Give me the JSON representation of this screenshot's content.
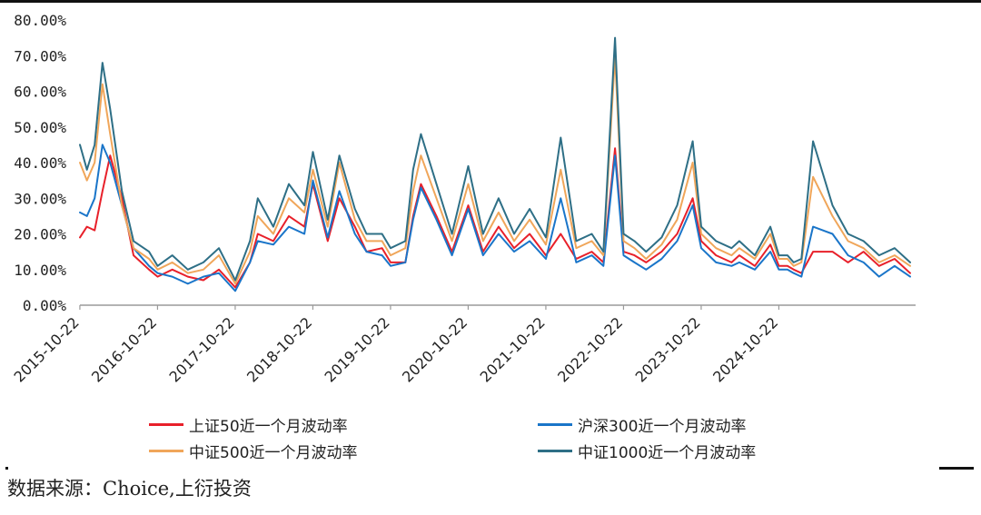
{
  "chart_data": {
    "type": "line",
    "title": "",
    "xlabel": "",
    "ylabel": "",
    "ylim": [
      0,
      80
    ],
    "y_ticks": [
      "0.00%",
      "10.00%",
      "20.00%",
      "30.00%",
      "40.00%",
      "50.00%",
      "60.00%",
      "70.00%",
      "80.00%"
    ],
    "x_ticks": [
      "2015-10-22",
      "2016-10-22",
      "2017-10-22",
      "2018-10-22",
      "2019-10-22",
      "2020-10-22",
      "2021-10-22",
      "2022-10-22",
      "2023-10-22",
      "2024-10-22"
    ],
    "xlim": [
      2015.81,
      2026.57
    ],
    "grid": false,
    "legend_position": "bottom",
    "series": [
      {
        "name": "上证50近一个月波动率",
        "color": "#e8202a",
        "x": [
          2015.81,
          2015.9,
          2016.0,
          2016.1,
          2016.2,
          2016.35,
          2016.5,
          2016.7,
          2016.81,
          2017.0,
          2017.2,
          2017.4,
          2017.6,
          2017.81,
          2018.0,
          2018.1,
          2018.3,
          2018.5,
          2018.7,
          2018.81,
          2019.0,
          2019.15,
          2019.35,
          2019.5,
          2019.7,
          2019.81,
          2020.0,
          2020.1,
          2020.2,
          2020.4,
          2020.6,
          2020.81,
          2021.0,
          2021.2,
          2021.4,
          2021.6,
          2021.81,
          2022.0,
          2022.2,
          2022.4,
          2022.55,
          2022.7,
          2022.81,
          2022.95,
          2023.1,
          2023.3,
          2023.5,
          2023.7,
          2023.81,
          2024.0,
          2024.2,
          2024.3,
          2024.5,
          2024.7,
          2024.81,
          2024.92,
          2025.0,
          2025.1,
          2025.25,
          2025.5,
          2025.7,
          2025.9,
          2026.1,
          2026.3,
          2026.5
        ],
        "values": [
          19,
          22,
          21,
          32,
          42,
          30,
          14,
          10,
          8,
          10,
          8,
          7,
          10,
          5,
          12,
          20,
          18,
          25,
          22,
          34,
          18,
          30,
          22,
          15,
          16,
          12,
          12,
          25,
          34,
          25,
          15,
          28,
          15,
          22,
          16,
          20,
          14,
          20,
          13,
          15,
          12,
          44,
          15,
          14,
          12,
          15,
          20,
          30,
          18,
          14,
          12,
          14,
          11,
          17,
          11,
          11,
          10,
          9,
          15,
          15,
          12,
          15,
          11,
          13,
          9
        ],
        "values_note_ignore": ""
      },
      {
        "name": "沪深300近一个月波动率",
        "color": "#1a75c9",
        "x": [
          2015.81,
          2015.9,
          2016.0,
          2016.1,
          2016.2,
          2016.35,
          2016.5,
          2016.7,
          2016.81,
          2017.0,
          2017.2,
          2017.4,
          2017.6,
          2017.81,
          2018.0,
          2018.1,
          2018.3,
          2018.5,
          2018.7,
          2018.81,
          2019.0,
          2019.15,
          2019.35,
          2019.5,
          2019.7,
          2019.81,
          2020.0,
          2020.1,
          2020.2,
          2020.4,
          2020.6,
          2020.81,
          2021.0,
          2021.2,
          2021.4,
          2021.6,
          2021.81,
          2022.0,
          2022.2,
          2022.4,
          2022.55,
          2022.7,
          2022.81,
          2022.95,
          2023.1,
          2023.3,
          2023.5,
          2023.7,
          2023.81,
          2024.0,
          2024.2,
          2024.3,
          2024.5,
          2024.7,
          2024.81,
          2024.92,
          2025.0,
          2025.1,
          2025.25,
          2025.5,
          2025.7,
          2025.9,
          2026.1,
          2026.3,
          2026.5
        ],
        "values": [
          26,
          25,
          30,
          45,
          40,
          28,
          16,
          11,
          9,
          8,
          6,
          8,
          9,
          4,
          12,
          18,
          17,
          22,
          20,
          35,
          19,
          32,
          20,
          15,
          14,
          11,
          12,
          24,
          33,
          24,
          14,
          27,
          14,
          20,
          15,
          18,
          13,
          30,
          12,
          14,
          11,
          42,
          14,
          12,
          10,
          13,
          18,
          28,
          16,
          12,
          11,
          12,
          10,
          15,
          10,
          10,
          9,
          8,
          22,
          20,
          14,
          12,
          8,
          11,
          8
        ]
      },
      {
        "name": "中证500近一个月波动率",
        "color": "#f0a65a",
        "x": [
          2015.81,
          2015.9,
          2016.0,
          2016.1,
          2016.2,
          2016.35,
          2016.5,
          2016.7,
          2016.81,
          2017.0,
          2017.2,
          2017.4,
          2017.6,
          2017.81,
          2018.0,
          2018.1,
          2018.3,
          2018.5,
          2018.7,
          2018.81,
          2019.0,
          2019.15,
          2019.35,
          2019.5,
          2019.7,
          2019.81,
          2020.0,
          2020.1,
          2020.2,
          2020.4,
          2020.6,
          2020.81,
          2021.0,
          2021.2,
          2021.4,
          2021.6,
          2021.81,
          2022.0,
          2022.2,
          2022.4,
          2022.55,
          2022.7,
          2022.81,
          2022.95,
          2023.1,
          2023.3,
          2023.5,
          2023.7,
          2023.81,
          2024.0,
          2024.2,
          2024.3,
          2024.5,
          2024.7,
          2024.81,
          2024.92,
          2025.0,
          2025.1,
          2025.25,
          2025.5,
          2025.7,
          2025.9,
          2026.1,
          2026.3,
          2026.5
        ],
        "values": [
          40,
          35,
          40,
          62,
          48,
          28,
          16,
          13,
          10,
          12,
          9,
          10,
          14,
          6,
          15,
          25,
          20,
          30,
          26,
          38,
          22,
          40,
          24,
          18,
          18,
          14,
          16,
          32,
          42,
          30,
          18,
          34,
          18,
          26,
          18,
          24,
          17,
          38,
          16,
          18,
          14,
          70,
          18,
          16,
          13,
          17,
          24,
          40,
          20,
          16,
          14,
          16,
          13,
          20,
          13,
          13,
          11,
          12,
          36,
          25,
          18,
          16,
          12,
          14,
          11
        ]
      },
      {
        "name": "中证1000近一个月波动率",
        "color": "#2e6f86",
        "x": [
          2015.81,
          2015.9,
          2016.0,
          2016.1,
          2016.2,
          2016.35,
          2016.5,
          2016.7,
          2016.81,
          2017.0,
          2017.2,
          2017.4,
          2017.6,
          2017.81,
          2018.0,
          2018.1,
          2018.3,
          2018.5,
          2018.7,
          2018.81,
          2019.0,
          2019.15,
          2019.35,
          2019.5,
          2019.7,
          2019.81,
          2020.0,
          2020.1,
          2020.2,
          2020.4,
          2020.6,
          2020.81,
          2021.0,
          2021.2,
          2021.4,
          2021.6,
          2021.81,
          2022.0,
          2022.2,
          2022.4,
          2022.55,
          2022.7,
          2022.81,
          2022.95,
          2023.1,
          2023.3,
          2023.5,
          2023.7,
          2023.81,
          2024.0,
          2024.2,
          2024.3,
          2024.5,
          2024.7,
          2024.81,
          2024.92,
          2025.0,
          2025.1,
          2025.25,
          2025.5,
          2025.7,
          2025.9,
          2026.1,
          2026.3,
          2026.5
        ],
        "values": [
          45,
          38,
          45,
          68,
          55,
          32,
          18,
          15,
          11,
          14,
          10,
          12,
          16,
          7,
          18,
          30,
          22,
          34,
          28,
          43,
          24,
          42,
          27,
          20,
          20,
          16,
          18,
          38,
          48,
          34,
          20,
          39,
          20,
          30,
          20,
          27,
          19,
          47,
          18,
          20,
          15,
          75,
          20,
          18,
          15,
          19,
          28,
          46,
          22,
          18,
          16,
          18,
          14,
          22,
          14,
          14,
          12,
          13,
          46,
          28,
          20,
          18,
          14,
          16,
          12
        ]
      }
    ]
  },
  "source_text": "数据来源：Choice,上衍投资",
  "colors": {
    "axis": "#9a9a9a",
    "text": "#222222"
  }
}
